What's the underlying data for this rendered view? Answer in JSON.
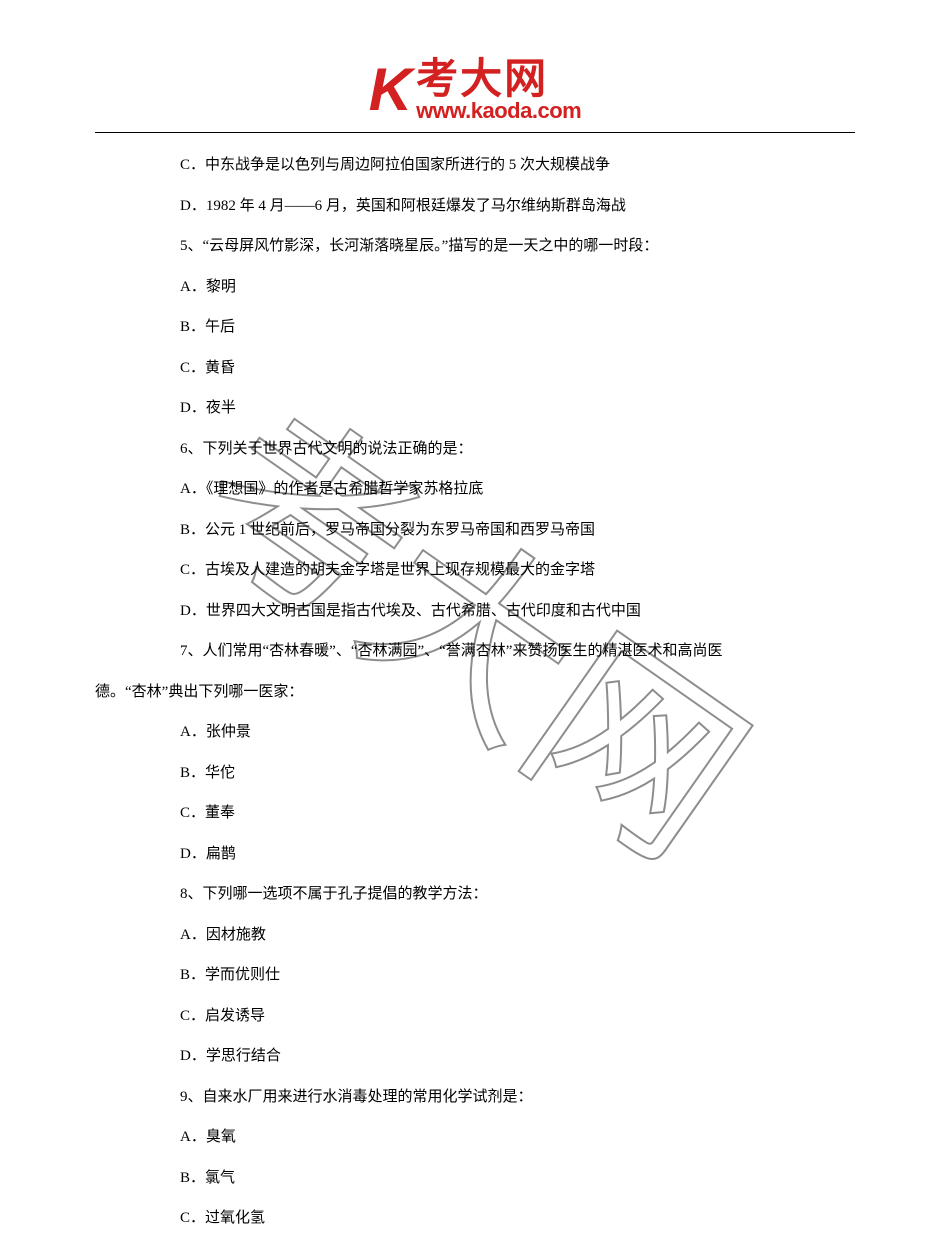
{
  "header": {
    "logo_k": "K",
    "logo_main": "考大网",
    "logo_url": "www.kaoda.com"
  },
  "watermark": {
    "text": "考大网",
    "stroke_color": "#7a7a7a",
    "stroke_width": 2,
    "rotation": 35
  },
  "lines": [
    {
      "text": "C．中东战争是以色列与周边阿拉伯国家所进行的 5 次大规模战争",
      "type": "option"
    },
    {
      "text": "D．1982 年 4 月——6 月，英国和阿根廷爆发了马尔维纳斯群岛海战",
      "type": "option"
    },
    {
      "text": "5、“云母屏风竹影深，长河渐落晓星辰。”描写的是一天之中的哪一时段：",
      "type": "question"
    },
    {
      "text": "A．黎明",
      "type": "option"
    },
    {
      "text": "B．午后",
      "type": "option"
    },
    {
      "text": "C．黄昏",
      "type": "option"
    },
    {
      "text": "D．夜半",
      "type": "option"
    },
    {
      "text": "6、下列关于世界古代文明的说法正确的是：",
      "type": "question"
    },
    {
      "text": "A．《理想国》的作者是古希腊哲学家苏格拉底",
      "type": "option"
    },
    {
      "text": "B．公元 1 世纪前后，罗马帝国分裂为东罗马帝国和西罗马帝国",
      "type": "option"
    },
    {
      "text": "C．古埃及人建造的胡夫金字塔是世界上现存规模最大的金字塔",
      "type": "option"
    },
    {
      "text": "D．世界四大文明古国是指古代埃及、古代希腊、古代印度和古代中国",
      "type": "option"
    },
    {
      "text": "7、人们常用“杏林春暖”、“杏林满园”、“誉满杏林”来赞扬医生的精湛医术和高尚医",
      "type": "question-part1"
    },
    {
      "text": "德。“杏林”典出下列哪一医家：",
      "type": "question-part2"
    },
    {
      "text": "A．张仲景",
      "type": "option"
    },
    {
      "text": "B．华佗",
      "type": "option"
    },
    {
      "text": "C．董奉",
      "type": "option"
    },
    {
      "text": "D．扁鹊",
      "type": "option"
    },
    {
      "text": "8、下列哪一选项不属于孔子提倡的教学方法：",
      "type": "question"
    },
    {
      "text": "A．因材施教",
      "type": "option"
    },
    {
      "text": "B．学而优则仕",
      "type": "option"
    },
    {
      "text": "C．启发诱导",
      "type": "option"
    },
    {
      "text": "D．学思行结合",
      "type": "option"
    },
    {
      "text": "9、自来水厂用来进行水消毒处理的常用化学试剂是：",
      "type": "question"
    },
    {
      "text": "A．臭氧",
      "type": "option"
    },
    {
      "text": "B．氯气",
      "type": "option"
    },
    {
      "text": "C．过氧化氢",
      "type": "option"
    }
  ]
}
